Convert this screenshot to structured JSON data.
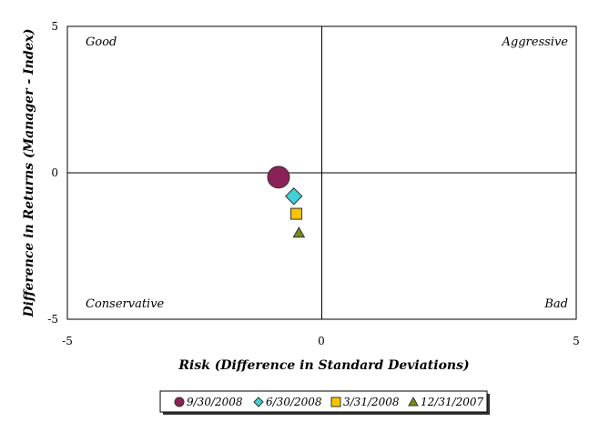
{
  "chart_data": {
    "type": "scatter",
    "xlabel": "Risk (Difference in Standard Deviations)",
    "ylabel": "Difference in Returns (Manager - Index)",
    "xlim": [
      -5,
      5
    ],
    "ylim": [
      -5,
      5
    ],
    "x_ticks": [
      "-5",
      "0",
      "5"
    ],
    "y_ticks": [
      "5",
      "0",
      "-5"
    ],
    "grid": false,
    "legend_position": "bottom",
    "quadrant_labels": {
      "top_left": "Good",
      "top_right": "Aggressive",
      "bottom_left": "Conservative",
      "bottom_right": "Bad"
    },
    "series": [
      {
        "name": "9/30/2008",
        "x": -0.85,
        "y": -0.15,
        "marker": "circle",
        "size": "large",
        "color": "#8B2257"
      },
      {
        "name": "6/30/2008",
        "x": -0.55,
        "y": -0.8,
        "marker": "diamond",
        "size": "medium",
        "color": "#3FD1D6"
      },
      {
        "name": "3/31/2008",
        "x": -0.5,
        "y": -1.4,
        "marker": "square",
        "size": "small",
        "color": "#F7C400"
      },
      {
        "name": "12/31/2007",
        "x": -0.45,
        "y": -2.05,
        "marker": "triangle",
        "size": "small",
        "color": "#7C8A1A"
      }
    ]
  }
}
